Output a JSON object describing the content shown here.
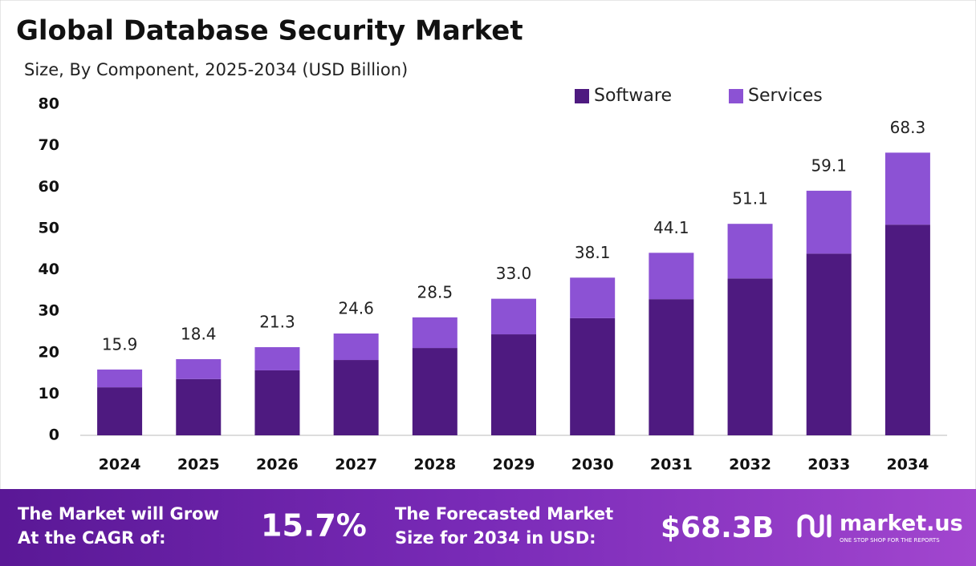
{
  "chart_data": {
    "type": "stacked_bar",
    "title": "Global Database Security Market",
    "subtitle": "Size, By Component, 2025-2034 (USD Billion)",
    "categories": [
      "2024",
      "2025",
      "2026",
      "2027",
      "2028",
      "2029",
      "2030",
      "2031",
      "2032",
      "2033",
      "2034"
    ],
    "series": [
      {
        "name": "Software",
        "color": "#4e1a80",
        "values": [
          11.6,
          13.6,
          15.7,
          18.2,
          21.1,
          24.4,
          28.3,
          32.9,
          37.9,
          43.9,
          50.9
        ]
      },
      {
        "name": "Services",
        "color": "#8c52d4",
        "values": [
          4.3,
          4.8,
          5.6,
          6.4,
          7.4,
          8.6,
          9.8,
          11.2,
          13.2,
          15.2,
          17.4
        ]
      }
    ],
    "totals": {
      "values": [
        15.9,
        18.4,
        21.3,
        24.6,
        28.5,
        33.0,
        38.1,
        44.1,
        51.1,
        59.1,
        68.3
      ],
      "value_labels": [
        "15.9",
        "18.4",
        "21.3",
        "24.6",
        "28.5",
        "33.0",
        "38.1",
        "44.1",
        "51.1",
        "59.1",
        "68.3"
      ]
    },
    "ylim": [
      0,
      80
    ],
    "yticks": [
      0,
      10,
      20,
      30,
      40,
      50,
      60,
      70,
      80
    ],
    "grid": false,
    "legend": "top-right"
  },
  "footer": {
    "cagr_text": [
      "The Market will Grow",
      "At the CAGR of:"
    ],
    "cagr": "15.7%",
    "forecast_text": [
      "The Forecasted Market",
      "Size for 2034 in USD:"
    ],
    "forecast": "$68.3B",
    "brand": "market.us",
    "tagline": "ONE STOP SHOP FOR THE REPORTS"
  }
}
